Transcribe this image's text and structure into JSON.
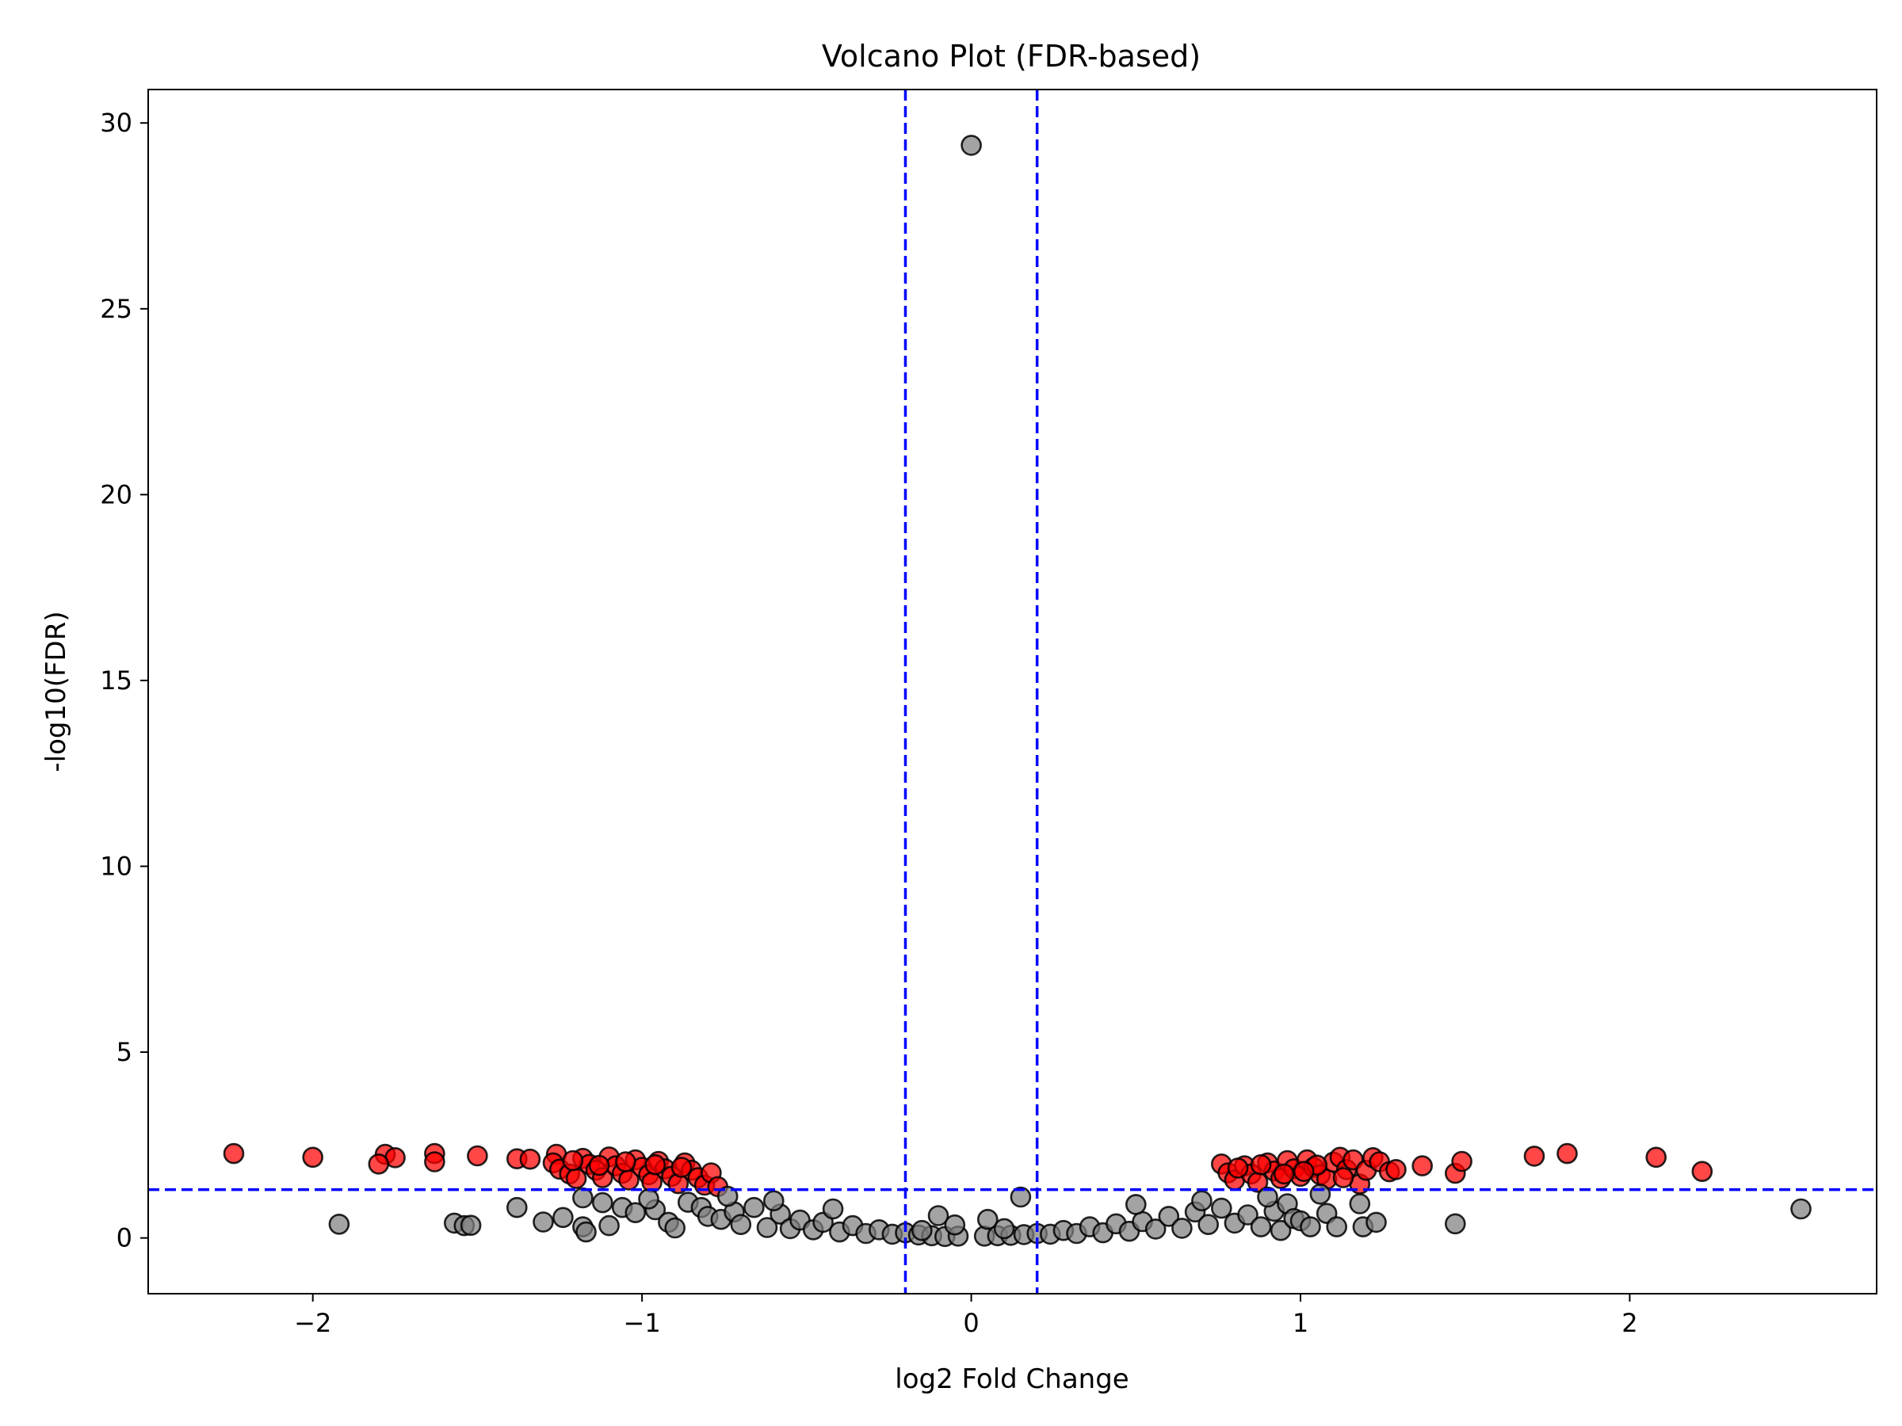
{
  "chart_data": {
    "type": "scatter",
    "title": "Volcano Plot (FDR-based)",
    "xlabel": "log2 Fold Change",
    "ylabel": "-log10(FDR)",
    "xlim": [
      -2.5,
      2.75
    ],
    "ylim": [
      -1.5,
      30.9
    ],
    "x_ticks": [
      -2,
      -1,
      0,
      1,
      2
    ],
    "x_tick_labels": [
      "−2",
      "−1",
      "0",
      "1",
      "2"
    ],
    "y_ticks": [
      0,
      5,
      10,
      15,
      20,
      25,
      30
    ],
    "y_tick_labels": [
      "0",
      "5",
      "10",
      "15",
      "20",
      "25",
      "30"
    ],
    "grid": false,
    "thresholds": {
      "log2fc": [
        -0.2,
        0.2
      ],
      "neg_log10_fdr": 1.3,
      "line_color": "#0000ff",
      "line_style": "dashed"
    },
    "colors": {
      "significant": "#ff0000",
      "not_significant": "#808080",
      "marker_edge": "#000000"
    },
    "series": [
      {
        "color": "#ff0000",
        "points": [
          [
            -2.24,
            2.27
          ],
          [
            -2.0,
            2.17
          ],
          [
            -1.78,
            2.25
          ],
          [
            -1.75,
            2.16
          ],
          [
            -1.8,
            1.99
          ],
          [
            -1.63,
            2.27
          ],
          [
            -1.63,
            2.05
          ],
          [
            -1.5,
            2.21
          ],
          [
            -1.38,
            2.13
          ],
          [
            -1.34,
            2.12
          ],
          [
            -1.26,
            2.25
          ],
          [
            -1.27,
            2.02
          ],
          [
            -1.25,
            1.85
          ],
          [
            -1.22,
            1.72
          ],
          [
            -1.2,
            1.6
          ],
          [
            -1.18,
            2.14
          ],
          [
            -1.16,
            1.98
          ],
          [
            -1.14,
            1.82
          ],
          [
            -1.12,
            1.62
          ],
          [
            -1.1,
            2.18
          ],
          [
            -1.08,
            1.94
          ],
          [
            -1.06,
            1.74
          ],
          [
            -1.04,
            1.56
          ],
          [
            -1.02,
            2.1
          ],
          [
            -1.0,
            1.9
          ],
          [
            -0.98,
            1.7
          ],
          [
            -0.97,
            1.5
          ],
          [
            -0.95,
            2.06
          ],
          [
            -0.93,
            1.86
          ],
          [
            -0.91,
            1.66
          ],
          [
            -0.89,
            1.46
          ],
          [
            -0.87,
            2.02
          ],
          [
            -0.85,
            1.82
          ],
          [
            -0.83,
            1.62
          ],
          [
            -0.81,
            1.42
          ],
          [
            -1.21,
            2.08
          ],
          [
            -1.13,
            1.95
          ],
          [
            -1.05,
            2.05
          ],
          [
            -0.96,
            1.97
          ],
          [
            -0.88,
            1.9
          ],
          [
            -0.79,
            1.75
          ],
          [
            -0.77,
            1.38
          ],
          [
            0.76,
            1.99
          ],
          [
            0.78,
            1.75
          ],
          [
            0.8,
            1.56
          ],
          [
            0.83,
            1.94
          ],
          [
            0.85,
            1.72
          ],
          [
            0.87,
            1.5
          ],
          [
            0.9,
            2.02
          ],
          [
            0.92,
            1.8
          ],
          [
            0.94,
            1.6
          ],
          [
            0.96,
            2.08
          ],
          [
            0.98,
            1.86
          ],
          [
            1.0,
            1.66
          ],
          [
            1.02,
            2.1
          ],
          [
            1.04,
            1.9
          ],
          [
            1.06,
            1.7
          ],
          [
            1.08,
            1.58
          ],
          [
            1.1,
            2.04
          ],
          [
            1.12,
            2.17
          ],
          [
            1.14,
            1.84
          ],
          [
            1.16,
            2.1
          ],
          [
            1.18,
            1.45
          ],
          [
            1.2,
            1.82
          ],
          [
            1.22,
            2.16
          ],
          [
            1.24,
            2.05
          ],
          [
            1.27,
            1.78
          ],
          [
            1.29,
            1.84
          ],
          [
            1.37,
            1.94
          ],
          [
            1.47,
            1.74
          ],
          [
            1.49,
            2.06
          ],
          [
            1.71,
            2.2
          ],
          [
            1.81,
            2.27
          ],
          [
            2.08,
            2.17
          ],
          [
            2.22,
            1.79
          ],
          [
            0.88,
            1.97
          ],
          [
            0.95,
            1.72
          ],
          [
            1.05,
            1.96
          ],
          [
            1.13,
            1.62
          ],
          [
            0.81,
            1.88
          ],
          [
            1.01,
            1.79
          ]
        ]
      },
      {
        "color": "#808080",
        "points": [
          [
            0.0,
            29.4
          ],
          [
            2.52,
            0.78
          ],
          [
            -1.92,
            0.37
          ],
          [
            -1.57,
            0.4
          ],
          [
            -1.54,
            0.33
          ],
          [
            -1.52,
            0.34
          ],
          [
            -1.38,
            0.82
          ],
          [
            -1.3,
            0.43
          ],
          [
            -1.18,
            0.3
          ],
          [
            -1.17,
            0.16
          ],
          [
            -1.1,
            0.33
          ],
          [
            -1.18,
            1.08
          ],
          [
            -1.12,
            0.95
          ],
          [
            -1.06,
            0.82
          ],
          [
            -1.02,
            0.68
          ],
          [
            -0.96,
            0.76
          ],
          [
            -0.92,
            0.42
          ],
          [
            -0.9,
            0.27
          ],
          [
            -0.86,
            0.96
          ],
          [
            -0.82,
            0.82
          ],
          [
            -0.8,
            0.58
          ],
          [
            -0.76,
            0.5
          ],
          [
            -0.72,
            0.7
          ],
          [
            -0.7,
            0.36
          ],
          [
            -0.66,
            0.82
          ],
          [
            -0.62,
            0.28
          ],
          [
            -0.58,
            0.64
          ],
          [
            -0.55,
            0.25
          ],
          [
            -0.52,
            0.48
          ],
          [
            -0.48,
            0.22
          ],
          [
            -0.45,
            0.42
          ],
          [
            -0.4,
            0.16
          ],
          [
            -0.36,
            0.33
          ],
          [
            -0.32,
            0.12
          ],
          [
            -0.28,
            0.22
          ],
          [
            -0.24,
            0.1
          ],
          [
            -0.2,
            0.14
          ],
          [
            -0.16,
            0.08
          ],
          [
            -0.12,
            0.06
          ],
          [
            -0.08,
            0.04
          ],
          [
            -0.04,
            0.05
          ],
          [
            0.04,
            0.05
          ],
          [
            0.08,
            0.06
          ],
          [
            0.12,
            0.07
          ],
          [
            0.16,
            0.09
          ],
          [
            0.2,
            0.12
          ],
          [
            0.24,
            0.1
          ],
          [
            0.28,
            0.2
          ],
          [
            0.32,
            0.12
          ],
          [
            0.36,
            0.3
          ],
          [
            0.4,
            0.14
          ],
          [
            0.44,
            0.38
          ],
          [
            0.48,
            0.18
          ],
          [
            0.52,
            0.44
          ],
          [
            0.56,
            0.24
          ],
          [
            0.6,
            0.58
          ],
          [
            0.64,
            0.26
          ],
          [
            0.68,
            0.7
          ],
          [
            0.72,
            0.36
          ],
          [
            0.76,
            0.8
          ],
          [
            0.8,
            0.4
          ],
          [
            0.84,
            0.62
          ],
          [
            0.88,
            0.3
          ],
          [
            0.92,
            0.72
          ],
          [
            0.94,
            0.2
          ],
          [
            0.96,
            0.92
          ],
          [
            0.98,
            0.52
          ],
          [
            1.0,
            0.46
          ],
          [
            1.03,
            0.3
          ],
          [
            1.06,
            1.18
          ],
          [
            1.08,
            0.66
          ],
          [
            1.11,
            0.3
          ],
          [
            1.18,
            0.92
          ],
          [
            1.19,
            0.3
          ],
          [
            1.23,
            0.42
          ],
          [
            1.47,
            0.38
          ],
          [
            0.15,
            1.1
          ],
          [
            -0.1,
            0.6
          ],
          [
            0.05,
            0.5
          ],
          [
            -0.05,
            0.35
          ],
          [
            0.1,
            0.25
          ],
          [
            -0.15,
            0.2
          ],
          [
            -1.24,
            0.55
          ],
          [
            -0.98,
            1.05
          ],
          [
            0.9,
            1.1
          ],
          [
            0.7,
            1.0
          ],
          [
            -0.74,
            1.12
          ],
          [
            -0.6,
            1.0
          ],
          [
            0.5,
            0.9
          ],
          [
            -0.42,
            0.78
          ]
        ]
      }
    ]
  }
}
